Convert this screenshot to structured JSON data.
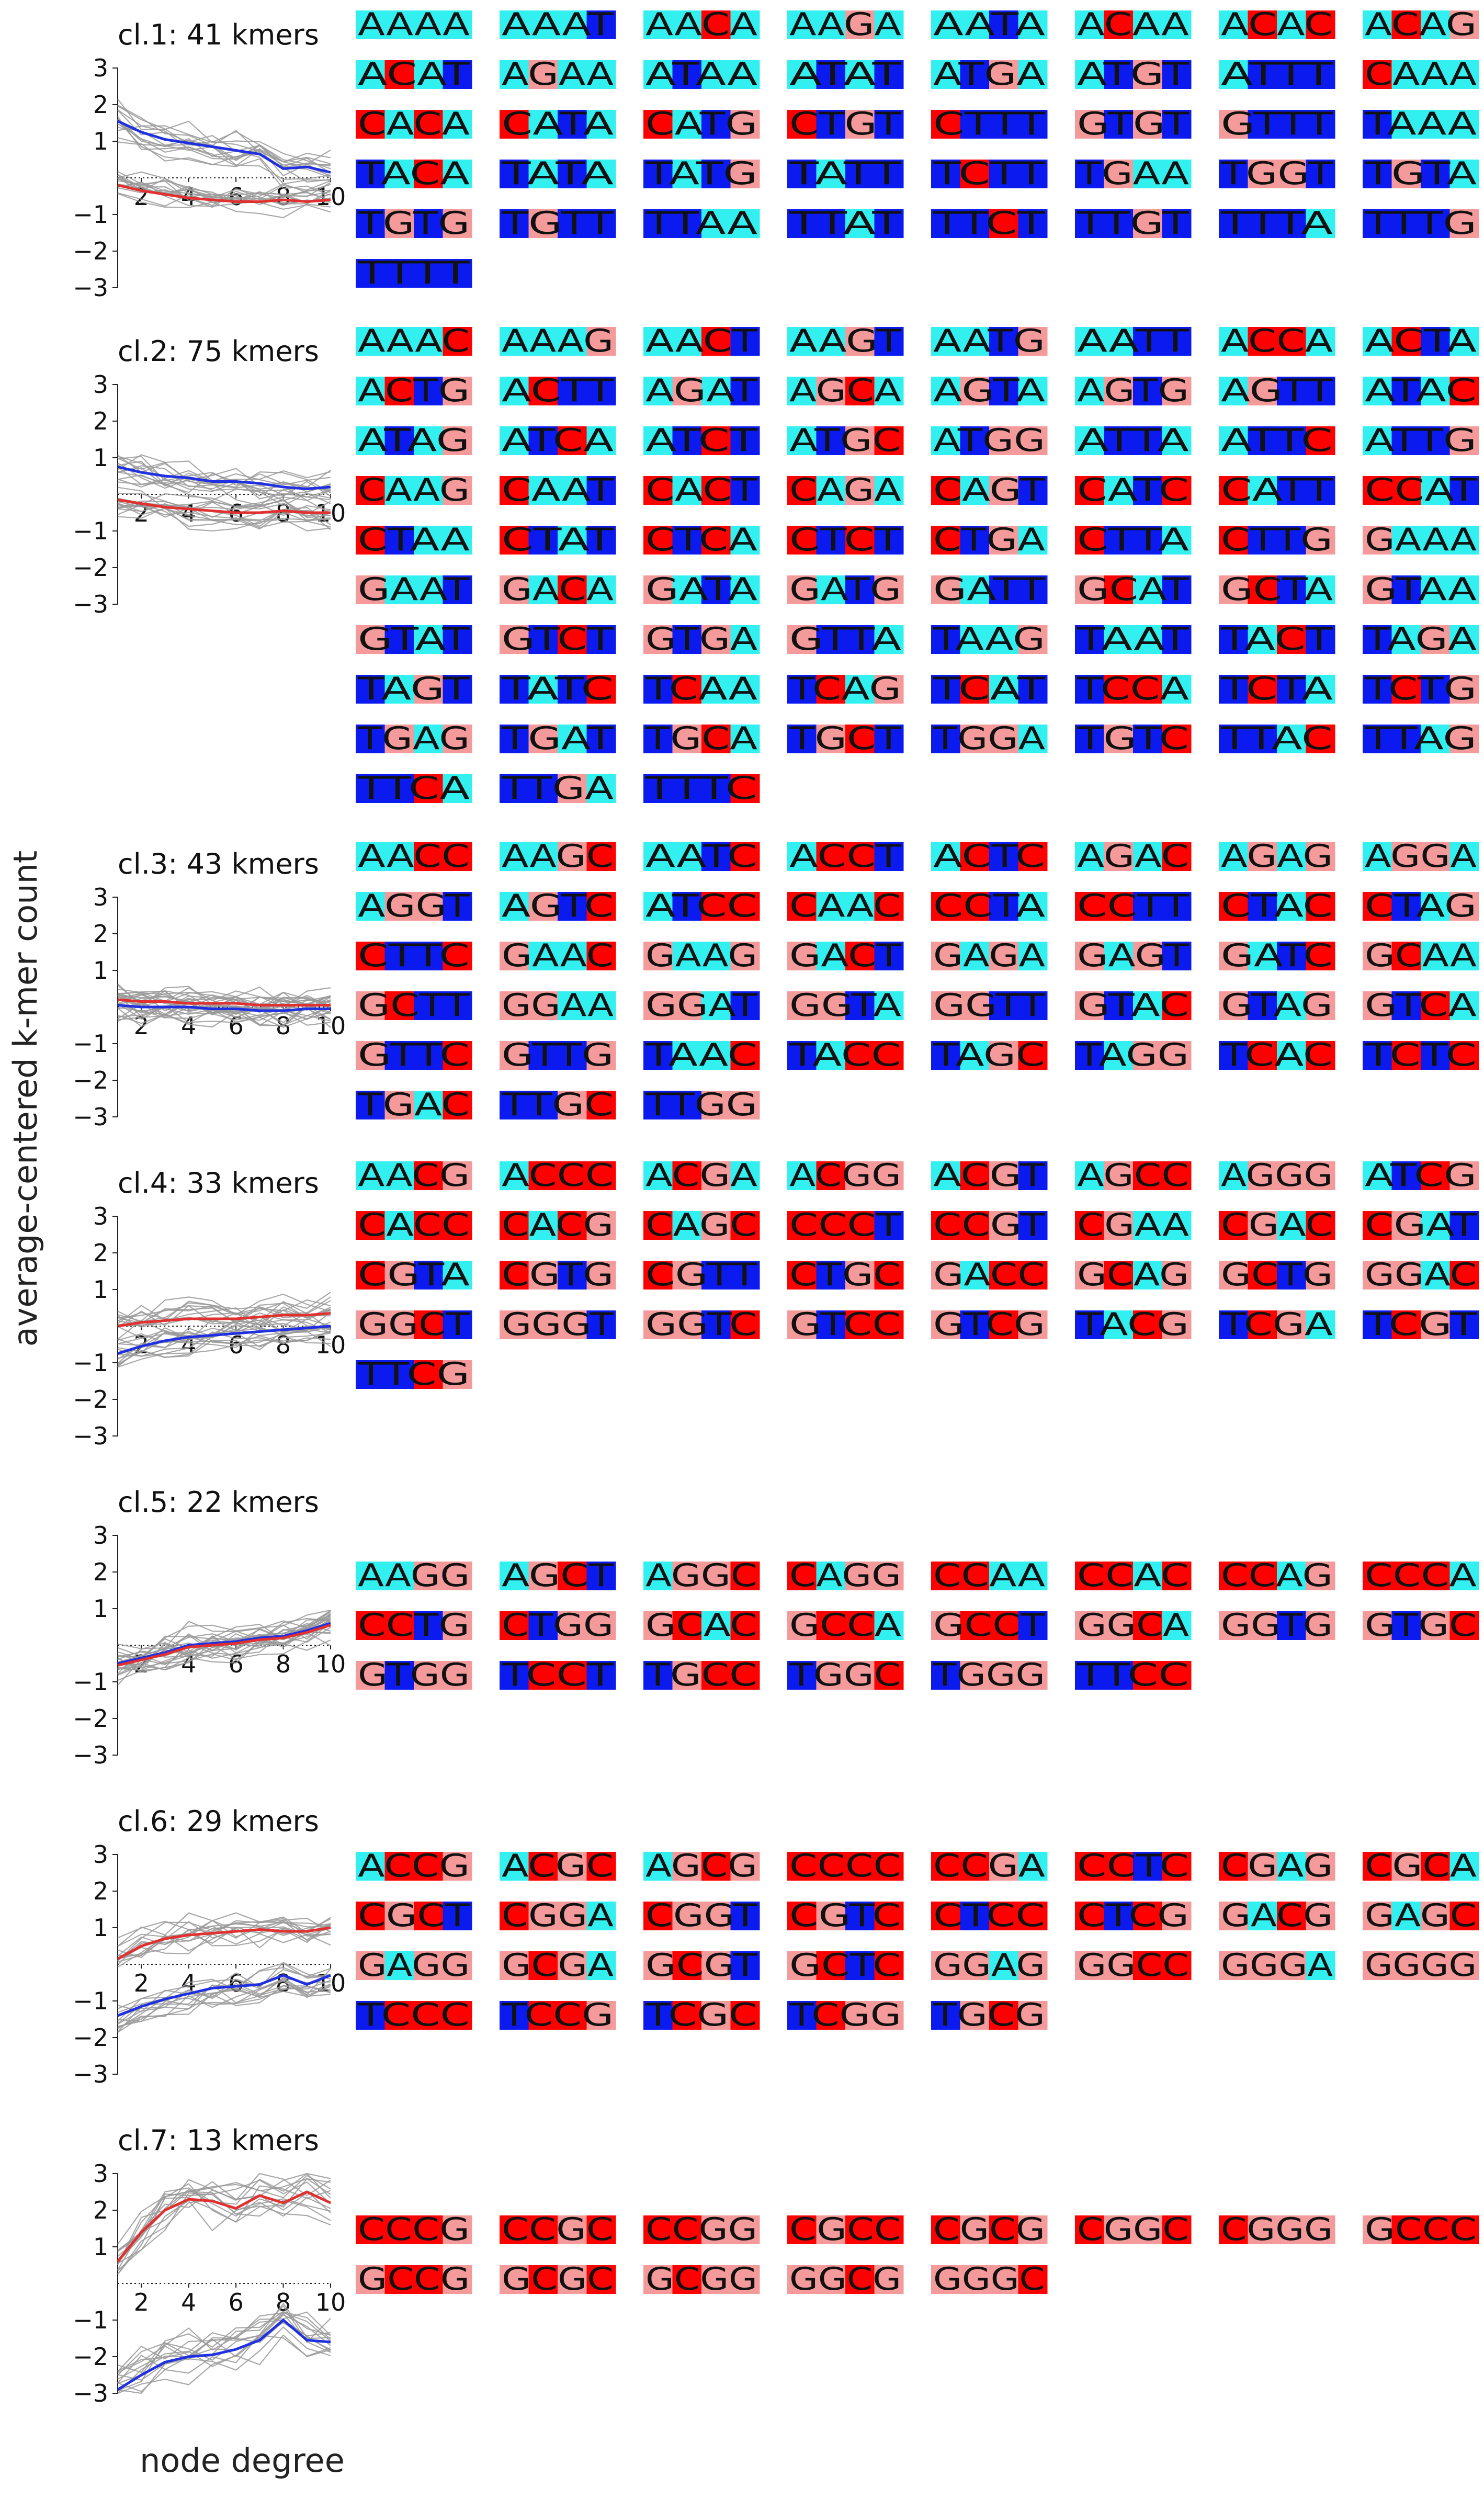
{
  "figure": {
    "ylabel": "average-centered k-mer count",
    "xlabel": "node degree"
  },
  "colors": {
    "A": "#33f0f0",
    "C": "#ff0000",
    "G": "#f59a9a",
    "T": "#0b1bf0",
    "curve_red": "#e03030",
    "curve_blue": "#2030e0",
    "member_gray": "#999999",
    "axis": "#222222"
  },
  "chart_data": {
    "type": "line",
    "x": [
      1,
      2,
      3,
      4,
      5,
      6,
      7,
      8,
      9,
      10
    ],
    "xticks": [
      "2",
      "4",
      "6",
      "8",
      "10"
    ],
    "yticks": [
      "3",
      "2",
      "1",
      "−1",
      "−2",
      "−3"
    ],
    "ylim": [
      -3,
      3
    ],
    "xlim": [
      1,
      10
    ],
    "clusters": [
      {
        "title": "cl.1:  41  kmers",
        "up": [
          1.55,
          1.25,
          1.05,
          0.95,
          0.85,
          0.75,
          0.65,
          0.25,
          0.3,
          0.15
        ],
        "down": [
          -0.2,
          -0.35,
          -0.45,
          -0.55,
          -0.6,
          -0.65,
          -0.65,
          -0.6,
          -0.65,
          -0.6
        ],
        "kmers": [
          "AAAA",
          "AAAT",
          "AACA",
          "AAGA",
          "AATA",
          "ACAA",
          "ACAC",
          "ACAG",
          "ACAT",
          "AGAA",
          "ATAA",
          "ATAT",
          "ATGA",
          "ATGT",
          "ATTT",
          "CAAA",
          "CACA",
          "CATA",
          "CATG",
          "CTGT",
          "CTTT",
          "GTGT",
          "GTTT",
          "TAAA",
          "TACA",
          "TATA",
          "TATG",
          "TATT",
          "TCTT",
          "TGAA",
          "TGGT",
          "TGTA",
          "TGTG",
          "TGTT",
          "TTAA",
          "TTAT",
          "TTCT",
          "TTGT",
          "TTTA",
          "TTTG",
          "TTTT"
        ]
      },
      {
        "title": "cl.2:  75  kmers",
        "up": [
          0.75,
          0.6,
          0.5,
          0.45,
          0.35,
          0.35,
          0.3,
          0.2,
          0.15,
          0.2
        ],
        "down": [
          -0.15,
          -0.25,
          -0.35,
          -0.4,
          -0.45,
          -0.5,
          -0.5,
          -0.45,
          -0.5,
          -0.5
        ],
        "kmers": [
          "AAAC",
          "AAAG",
          "AACT",
          "AAGT",
          "AATG",
          "AATT",
          "ACCA",
          "ACTA",
          "ACTG",
          "ACTT",
          "AGAT",
          "AGCA",
          "AGTA",
          "AGTG",
          "AGTT",
          "ATAC",
          "ATAG",
          "ATCA",
          "ATCT",
          "ATGC",
          "ATGG",
          "ATTA",
          "ATTC",
          "ATTG",
          "CAAG",
          "CAAT",
          "CACT",
          "CAGA",
          "CAGT",
          "CATC",
          "CATT",
          "CCAT",
          "CTAA",
          "CTAT",
          "CTCA",
          "CTCT",
          "CTGA",
          "CTTA",
          "CTTG",
          "GAAA",
          "GAAT",
          "GACA",
          "GATA",
          "GATG",
          "GATT",
          "GCAT",
          "GCTA",
          "GTAA",
          "GTAT",
          "GTCT",
          "GTGA",
          "GTTA",
          "TAAG",
          "TAAT",
          "TACT",
          "TAGA",
          "TAGT",
          "TATC",
          "TCAA",
          "TCAG",
          "TCAT",
          "TCCA",
          "TCTA",
          "TCTG",
          "TGAG",
          "TGAT",
          "TGCA",
          "TGCT",
          "TGGA",
          "TGTC",
          "TTAC",
          "TTAG",
          "TTCA",
          "TTGA",
          "TTTC"
        ]
      },
      {
        "title": "cl.3:  43  kmers",
        "up": [
          0.2,
          0.15,
          0.15,
          0.1,
          0.1,
          0.1,
          0.05,
          0.05,
          0.05,
          0.05
        ],
        "down": [
          0.05,
          0.0,
          0.0,
          0.0,
          -0.05,
          -0.05,
          -0.1,
          -0.1,
          -0.05,
          -0.05
        ],
        "kmers": [
          "AACC",
          "AAGC",
          "AATC",
          "ACCT",
          "ACTC",
          "AGAC",
          "AGAG",
          "AGGA",
          "AGGT",
          "AGTC",
          "ATCC",
          "CAAC",
          "CCTA",
          "CCTT",
          "CTAC",
          "CTAG",
          "CTTC",
          "GAAC",
          "GAAG",
          "GACT",
          "GAGA",
          "GAGT",
          "GATC",
          "GCAA",
          "GCTT",
          "GGAA",
          "GGAT",
          "GGTA",
          "GGTT",
          "GTAC",
          "GTAG",
          "GTCA",
          "GTTC",
          "GTTG",
          "TAAC",
          "TACC",
          "TAGC",
          "TAGG",
          "TCAC",
          "TCTC",
          "TGAC",
          "TTGC",
          "TTGG"
        ]
      },
      {
        "title": "cl.4:  33  kmers",
        "up": [
          0.0,
          0.1,
          0.15,
          0.2,
          0.2,
          0.2,
          0.25,
          0.3,
          0.3,
          0.35
        ],
        "down": [
          -0.75,
          -0.55,
          -0.4,
          -0.3,
          -0.25,
          -0.2,
          -0.15,
          -0.1,
          -0.05,
          0.0
        ],
        "kmers": [
          "AACG",
          "ACCC",
          "ACGA",
          "ACGG",
          "ACGT",
          "AGCC",
          "AGGG",
          "ATCG",
          "CACC",
          "CACG",
          "CAGC",
          "CCCT",
          "CCGT",
          "CGAA",
          "CGAC",
          "CGAT",
          "CGTA",
          "CGTG",
          "CGTT",
          "CTGC",
          "GACC",
          "GCAG",
          "GCTG",
          "GGAC",
          "GGCT",
          "GGGT",
          "GGTC",
          "GTCC",
          "GTCG",
          "TACG",
          "TCGA",
          "TCGT",
          "TTCG"
        ]
      },
      {
        "title": "cl.5:  22  kmers",
        "up": [
          -0.5,
          -0.35,
          -0.2,
          0.0,
          0.05,
          0.1,
          0.2,
          0.25,
          0.4,
          0.6
        ],
        "down": [
          -0.5,
          -0.35,
          -0.2,
          0.0,
          0.05,
          0.1,
          0.2,
          0.25,
          0.4,
          0.6
        ],
        "kmers": [
          "AAGG",
          "AGCT",
          "AGGC",
          "CAGG",
          "CCAA",
          "CCAC",
          "CCAG",
          "CCCA",
          "CCTG",
          "CTGG",
          "GCAC",
          "GCCA",
          "GCCT",
          "GGCA",
          "GGTG",
          "GTGC",
          "GTGG",
          "TCCT",
          "TGCC",
          "TGGC",
          "TGGG",
          "TTCC"
        ]
      },
      {
        "title": "cl.6:  29  kmers",
        "up": [
          0.15,
          0.5,
          0.7,
          0.8,
          0.85,
          0.9,
          0.95,
          0.9,
          0.9,
          1.0
        ],
        "down": [
          -1.4,
          -1.15,
          -0.95,
          -0.8,
          -0.65,
          -0.6,
          -0.55,
          -0.3,
          -0.55,
          -0.3
        ],
        "kmers": [
          "ACCG",
          "ACGC",
          "AGCG",
          "CCCC",
          "CCGA",
          "CCTC",
          "CGAG",
          "CGCA",
          "CGCT",
          "CGGA",
          "CGGT",
          "CGTC",
          "CTCC",
          "CTCG",
          "GACG",
          "GAGC",
          "GAGG",
          "GCGA",
          "GCGT",
          "GCTC",
          "GGAG",
          "GGCC",
          "GGGA",
          "GGGG",
          "TCCC",
          "TCCG",
          "TCGC",
          "TCGG",
          "TGCG"
        ]
      },
      {
        "title": "cl.7:  13  kmers",
        "up": [
          0.6,
          1.4,
          2.0,
          2.3,
          2.25,
          2.05,
          2.4,
          2.2,
          2.5,
          2.2
        ],
        "down": [
          -2.9,
          -2.5,
          -2.15,
          -2.0,
          -1.95,
          -1.8,
          -1.55,
          -1.0,
          -1.55,
          -1.6
        ],
        "kmers": [
          "CCCG",
          "CCGC",
          "CCGG",
          "CGCC",
          "CGCG",
          "CGGC",
          "CGGG",
          "GCCC",
          "GCCG",
          "GCGC",
          "GCGG",
          "GGCG",
          "GGGC"
        ]
      }
    ]
  }
}
